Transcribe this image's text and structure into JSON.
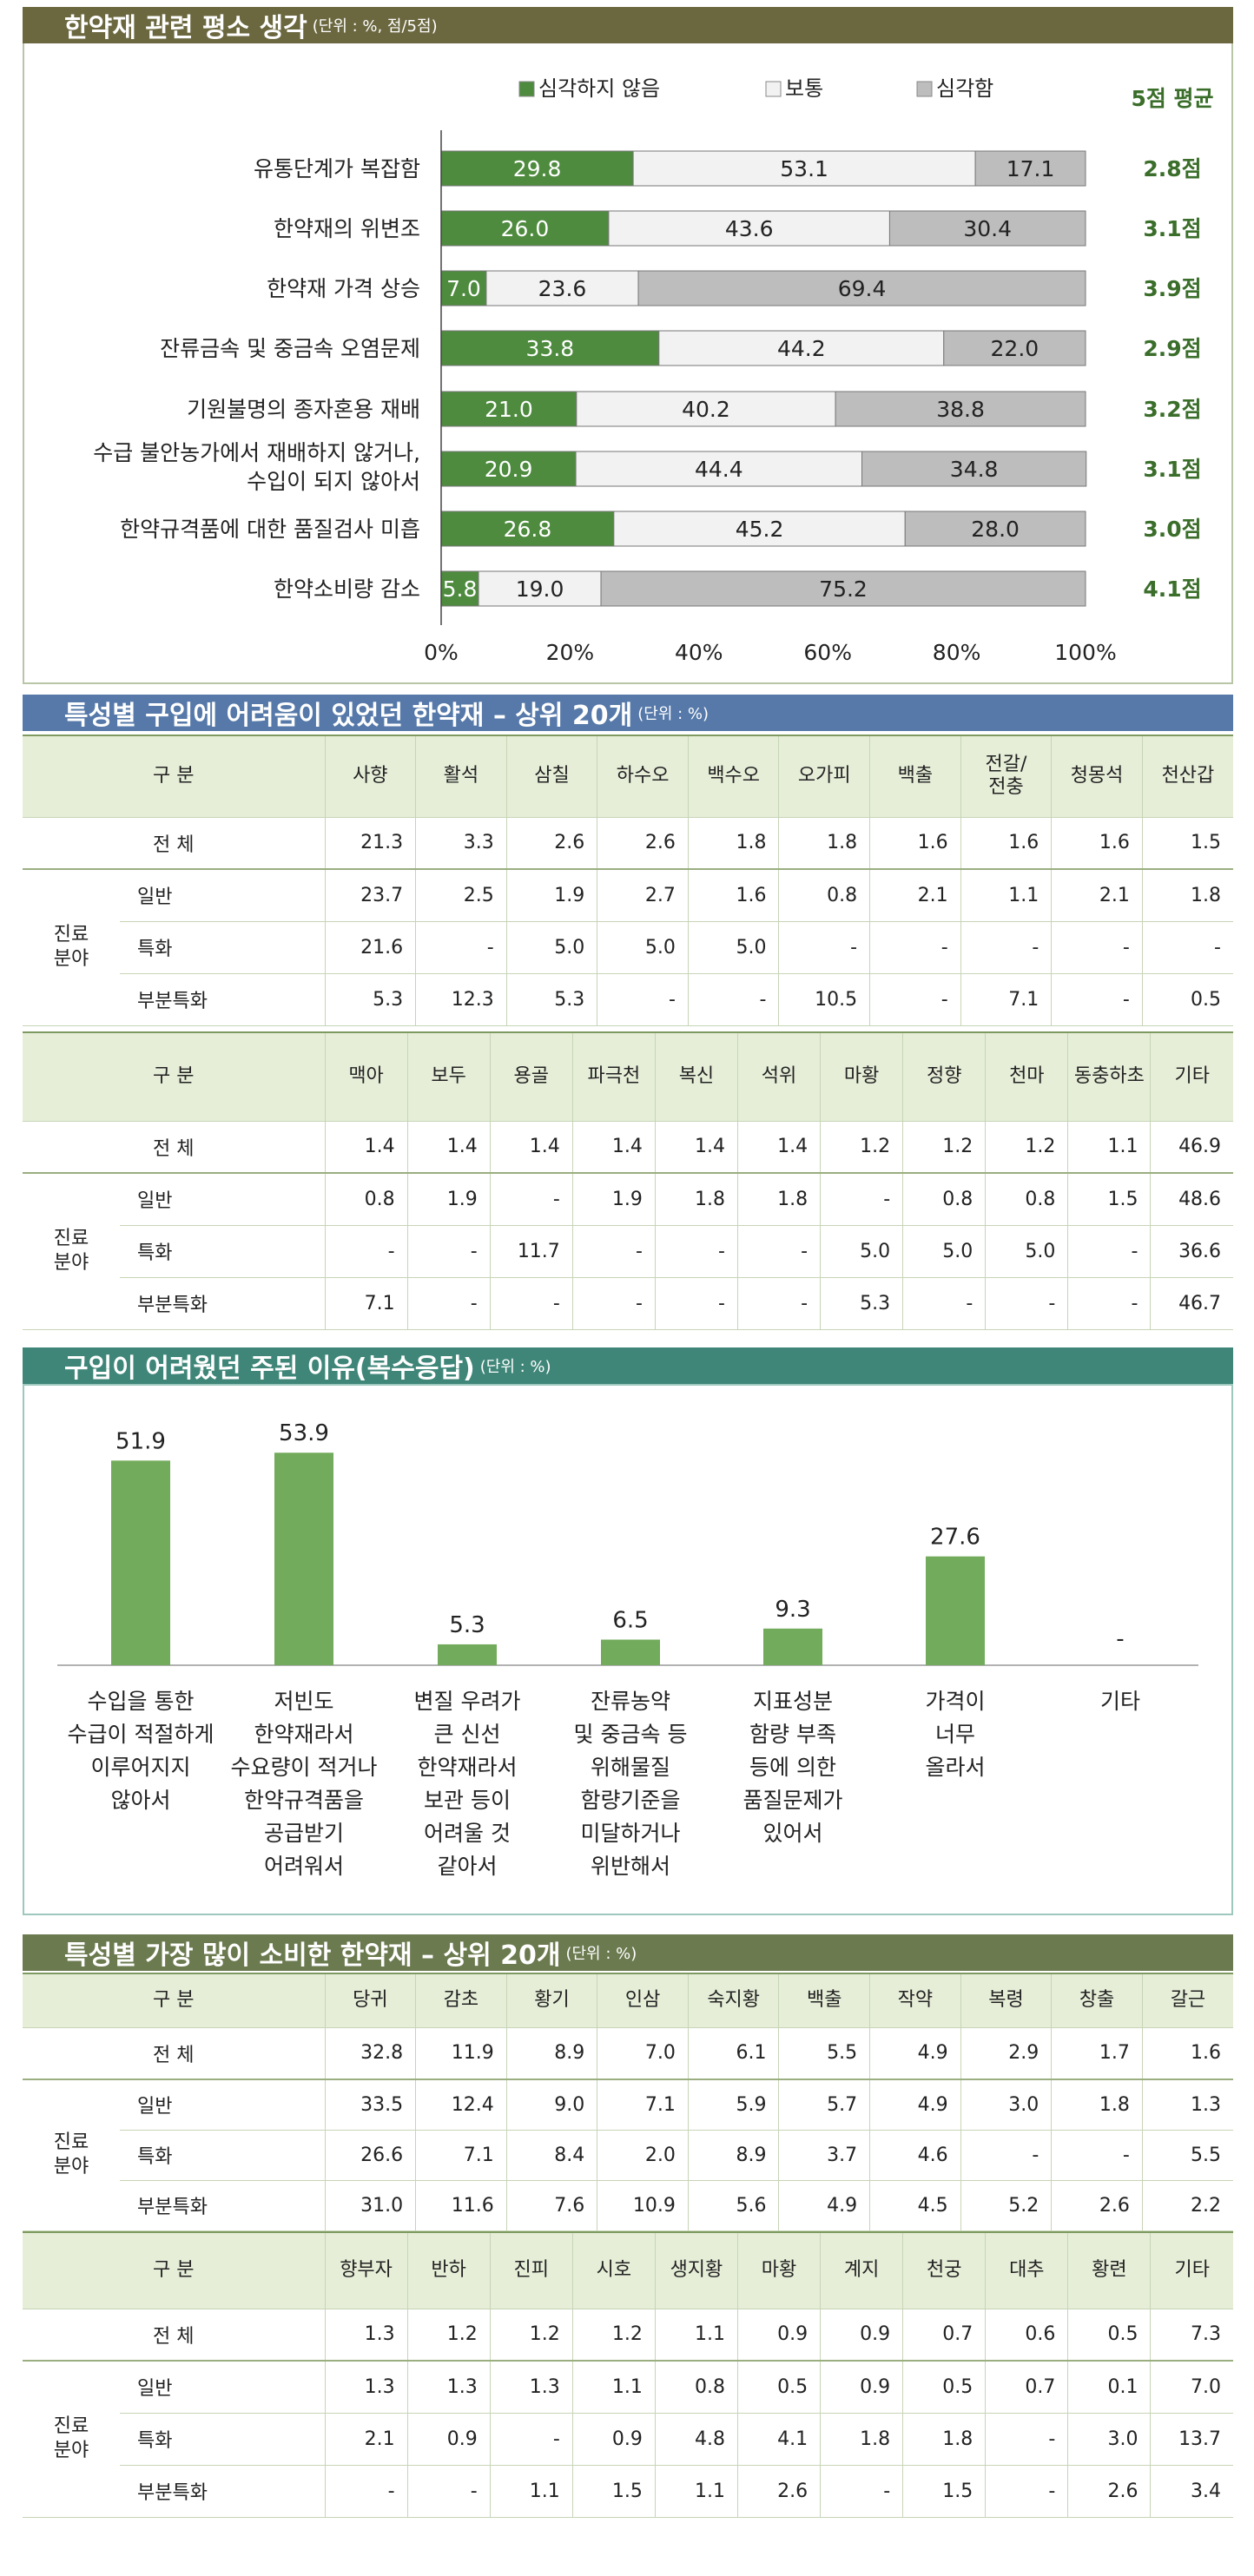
{
  "section1": {
    "title": "한약재 관련 평소 생각",
    "unit": "(단위 : %, 점/5점)",
    "avg_header": "5점 평균",
    "chart_data": {
      "type": "bar",
      "orientation": "horizontal",
      "stacked": true,
      "categories": [
        "유통단계가 복잡함",
        "한약재의 위변조",
        "한약재 가격 상승",
        "잔류금속 및 중금속 오염문제",
        "기원불명의 종자혼용 재배",
        "수급 불안농가에서 재배하지 않거나, 수입이 되지 않아서",
        "한약규격품에 대한 품질검사 미흡",
        "한약소비량 감소"
      ],
      "category_lines": [
        [
          "유통단계가 복잡함"
        ],
        [
          "한약재의 위변조"
        ],
        [
          "한약재 가격 상승"
        ],
        [
          "잔류금속 및 중금속 오염문제"
        ],
        [
          "기원불명의 종자혼용 재배"
        ],
        [
          "수급 불안농가에서 재배하지 않거나,",
          "수입이 되지 않아서"
        ],
        [
          "한약규격품에 대한 품질검사 미흡"
        ],
        [
          "한약소비량 감소"
        ]
      ],
      "series": [
        {
          "name": "심각하지 않음",
          "color": "#4e8b3e",
          "values": [
            29.8,
            26.0,
            7.0,
            33.8,
            21.0,
            20.9,
            26.8,
            5.8
          ]
        },
        {
          "name": "보통",
          "color": "#f2f2f2",
          "values": [
            53.1,
            43.6,
            23.6,
            44.2,
            40.2,
            44.4,
            45.2,
            19.0
          ]
        },
        {
          "name": "심각함",
          "color": "#bdbdbd",
          "values": [
            17.1,
            30.4,
            69.4,
            22.0,
            38.8,
            34.8,
            28.0,
            75.2
          ]
        }
      ],
      "averages": [
        "2.8점",
        "3.1점",
        "3.9점",
        "2.9점",
        "3.2점",
        "3.1점",
        "3.0점",
        "4.1점"
      ],
      "xlim": [
        0,
        100
      ],
      "x_ticks": [
        "0%",
        "20%",
        "40%",
        "60%",
        "80%",
        "100%"
      ],
      "legend_position": "top"
    }
  },
  "section2": {
    "title": "특성별 구입에 어려움이 있었던 한약재 – 상위 20개",
    "unit": "(단위 : %)",
    "head_label": "구 분",
    "total_label": "전 체",
    "group_label": [
      "진료",
      "분야"
    ],
    "row_labels": [
      "일반",
      "특화",
      "부분특화"
    ],
    "tables": [
      {
        "columns": [
          "사향",
          "활석",
          "삼칠",
          "하수오",
          "백수오",
          "오가피",
          "백출",
          "전갈/\n전충",
          "청몽석",
          "천산갑"
        ],
        "total": [
          "21.3",
          "3.3",
          "2.6",
          "2.6",
          "1.8",
          "1.8",
          "1.6",
          "1.6",
          "1.6",
          "1.5"
        ],
        "rows": [
          [
            "23.7",
            "2.5",
            "1.9",
            "2.7",
            "1.6",
            "0.8",
            "2.1",
            "1.1",
            "2.1",
            "1.8"
          ],
          [
            "21.6",
            "-",
            "5.0",
            "5.0",
            "5.0",
            "-",
            "-",
            "-",
            "-",
            "-"
          ],
          [
            "5.3",
            "12.3",
            "5.3",
            "-",
            "-",
            "10.5",
            "-",
            "7.1",
            "-",
            "0.5"
          ]
        ]
      },
      {
        "columns": [
          "맥아",
          "보두",
          "용골",
          "파극천",
          "복신",
          "석위",
          "마황",
          "정향",
          "천마",
          "동충하초",
          "기타"
        ],
        "total": [
          "1.4",
          "1.4",
          "1.4",
          "1.4",
          "1.4",
          "1.4",
          "1.2",
          "1.2",
          "1.2",
          "1.1",
          "46.9"
        ],
        "rows": [
          [
            "0.8",
            "1.9",
            "-",
            "1.9",
            "1.8",
            "1.8",
            "-",
            "0.8",
            "0.8",
            "1.5",
            "48.6"
          ],
          [
            "-",
            "-",
            "11.7",
            "-",
            "-",
            "-",
            "5.0",
            "5.0",
            "5.0",
            "-",
            "36.6"
          ],
          [
            "7.1",
            "-",
            "-",
            "-",
            "-",
            "-",
            "5.3",
            "-",
            "-",
            "-",
            "46.7"
          ]
        ]
      }
    ]
  },
  "section3": {
    "title": "구입이 어려웠던 주된 이유(복수응답)",
    "unit": "(단위 : %)",
    "chart_data": {
      "type": "bar",
      "bar_color": "#72ab5b",
      "categories": [
        "수입을 통한 수급이 적절하게 이루어지지 않아서",
        "저빈도 한약재라서 수요량이 적거나 한약규격품을 공급받기 어려워서",
        "변질 우려가 큰 신선 한약재라서 보관 등이 어려울 것 같아서",
        "잔류농약 및 중금속 등 위해물질 함량기준을 미달하거나 위반해서",
        "지표성분 함량 부족 등에 의한 품질문제가 있어서",
        "가격이 너무 올라서",
        "기타"
      ],
      "category_lines": [
        [
          "수입을 통한",
          "수급이 적절하게",
          "이루어지지",
          "않아서"
        ],
        [
          "저빈도",
          "한약재라서",
          "수요량이 적거나",
          "한약규격품을",
          "공급받기",
          "어려워서"
        ],
        [
          "변질 우려가",
          "큰 신선",
          "한약재라서",
          "보관 등이",
          "어려울 것",
          "같아서"
        ],
        [
          "잔류농약",
          "및 중금속 등",
          "위해물질",
          "함량기준을",
          "미달하거나",
          "위반해서"
        ],
        [
          "지표성분",
          "함량 부족",
          "등에 의한",
          "품질문제가",
          "있어서"
        ],
        [
          "가격이",
          "너무",
          "올라서"
        ],
        [
          "기타"
        ]
      ],
      "values": [
        51.9,
        53.9,
        5.3,
        6.5,
        9.3,
        27.6,
        null
      ],
      "labels": [
        "51.9",
        "53.9",
        "5.3",
        "6.5",
        "9.3",
        "27.6",
        "-"
      ],
      "ylim": [
        0,
        60
      ]
    }
  },
  "section4": {
    "title": "특성별 가장 많이 소비한 한약재 – 상위 20개",
    "unit": "(단위 : %)",
    "head_label": "구 분",
    "total_label": "전 체",
    "group_label": [
      "진료",
      "분야"
    ],
    "row_labels": [
      "일반",
      "특화",
      "부분특화"
    ],
    "tables": [
      {
        "columns": [
          "당귀",
          "감초",
          "황기",
          "인삼",
          "숙지황",
          "백출",
          "작약",
          "복령",
          "창출",
          "갈근"
        ],
        "total": [
          "32.8",
          "11.9",
          "8.9",
          "7.0",
          "6.1",
          "5.5",
          "4.9",
          "2.9",
          "1.7",
          "1.6"
        ],
        "rows": [
          [
            "33.5",
            "12.4",
            "9.0",
            "7.1",
            "5.9",
            "5.7",
            "4.9",
            "3.0",
            "1.8",
            "1.3"
          ],
          [
            "26.6",
            "7.1",
            "8.4",
            "2.0",
            "8.9",
            "3.7",
            "4.6",
            "-",
            "-",
            "5.5"
          ],
          [
            "31.0",
            "11.6",
            "7.6",
            "10.9",
            "5.6",
            "4.9",
            "4.5",
            "5.2",
            "2.6",
            "2.2"
          ]
        ]
      },
      {
        "columns": [
          "향부자",
          "반하",
          "진피",
          "시호",
          "생지황",
          "마황",
          "계지",
          "천궁",
          "대추",
          "황련",
          "기타"
        ],
        "total": [
          "1.3",
          "1.2",
          "1.2",
          "1.2",
          "1.1",
          "0.9",
          "0.9",
          "0.7",
          "0.6",
          "0.5",
          "7.3"
        ],
        "rows": [
          [
            "1.3",
            "1.3",
            "1.3",
            "1.1",
            "0.8",
            "0.5",
            "0.9",
            "0.5",
            "0.7",
            "0.1",
            "7.0"
          ],
          [
            "2.1",
            "0.9",
            "-",
            "0.9",
            "4.8",
            "4.1",
            "1.8",
            "1.8",
            "-",
            "3.0",
            "13.7"
          ],
          [
            "-",
            "-",
            "1.1",
            "1.5",
            "1.1",
            "2.6",
            "-",
            "1.5",
            "-",
            "2.6",
            "3.4"
          ]
        ]
      }
    ]
  }
}
